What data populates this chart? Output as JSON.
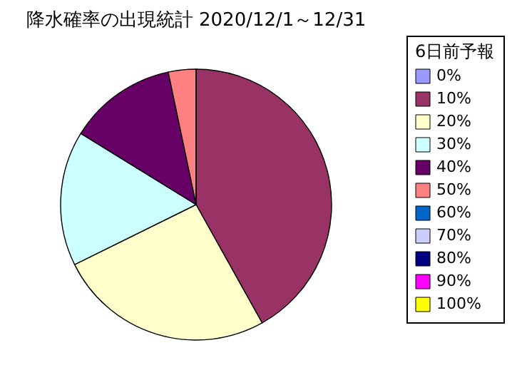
{
  "chart_data": {
    "type": "pie",
    "title": "降水確率の出現統計 2020/12/1～12/31",
    "legend_title": "6日前予報",
    "legend": "right",
    "categories": [
      "0%",
      "10%",
      "20%",
      "30%",
      "40%",
      "50%",
      "60%",
      "70%",
      "80%",
      "90%",
      "100%"
    ],
    "values": [
      0,
      41.9,
      25.8,
      16.1,
      12.9,
      3.3,
      0,
      0,
      0,
      0,
      0
    ],
    "colors": [
      "#9999ff",
      "#993366",
      "#ffffcc",
      "#ccffff",
      "#660066",
      "#ff8080",
      "#0066cc",
      "#ccccff",
      "#000080",
      "#ff00ff",
      "#ffff00"
    ]
  }
}
